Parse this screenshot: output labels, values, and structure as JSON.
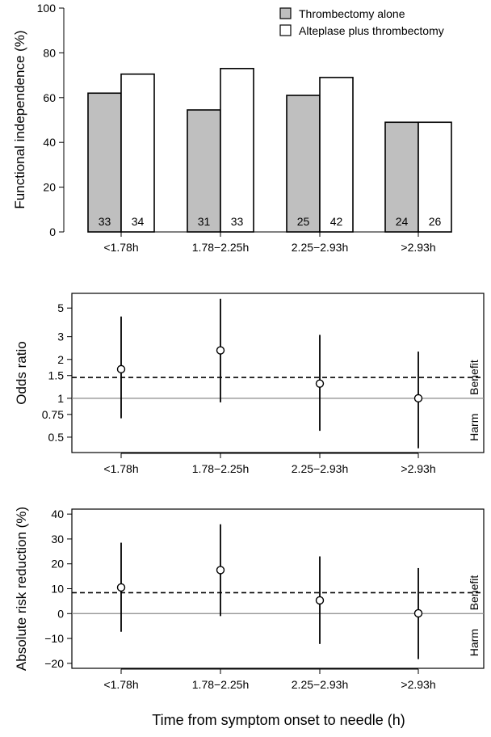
{
  "chart_data": [
    {
      "type": "bar",
      "ylabel": "Functional independence (%)",
      "ylim": [
        0,
        100
      ],
      "yticks": [
        0,
        20,
        40,
        60,
        80,
        100
      ],
      "categories": [
        "<1.78h",
        "1.78−2.25h",
        "2.25−2.93h",
        ">2.93h"
      ],
      "legend_position": "top-right",
      "series": [
        {
          "name": "Thrombectomy alone",
          "color": "#bfbfbf",
          "values": [
            62,
            54.5,
            61,
            49
          ],
          "counts": [
            "33",
            "31",
            "25",
            "24"
          ]
        },
        {
          "name": "Alteplase plus thrombectomy",
          "color": "#ffffff",
          "values": [
            70.5,
            73,
            69,
            49
          ],
          "counts": [
            "34",
            "33",
            "42",
            "26"
          ]
        }
      ]
    },
    {
      "type": "scatter",
      "ylabel": "Odds ratio",
      "yscale": "log",
      "ylim": [
        0.38,
        6.5
      ],
      "yticks": [
        0.5,
        0.75,
        1,
        1.5,
        2,
        3,
        5
      ],
      "ytick_labels": [
        "0.5",
        "0.75",
        "1",
        "1.5",
        "2",
        "3",
        "5"
      ],
      "categories": [
        "<1.78h",
        "1.78−2.25h",
        "2.25−2.93h",
        ">2.93h"
      ],
      "estimate": [
        1.68,
        2.35,
        1.3,
        1.0
      ],
      "ci_lower": [
        0.7,
        0.93,
        0.56,
        0.41
      ],
      "ci_upper": [
        4.3,
        5.9,
        3.1,
        2.3
      ],
      "reference_line": 1,
      "pooled_line": 1.45,
      "annotations": [
        "Benefit",
        "Harm"
      ]
    },
    {
      "type": "scatter",
      "ylabel": "Absolute risk reduction (%)",
      "ylim": [
        -22,
        42
      ],
      "yticks": [
        -20,
        -10,
        0,
        10,
        20,
        30,
        40
      ],
      "ytick_labels": [
        "−20",
        "−10",
        "0",
        "10",
        "20",
        "30",
        "40"
      ],
      "categories": [
        "<1.78h",
        "1.78−2.25h",
        "2.25−2.93h",
        ">2.93h"
      ],
      "estimate": [
        10.5,
        17.5,
        5.3,
        0.1
      ],
      "ci_lower": [
        -7.3,
        -1,
        -12.2,
        -18.3
      ],
      "ci_upper": [
        28.5,
        35.9,
        23,
        18.3
      ],
      "reference_line": 0,
      "pooled_line": 8.4,
      "annotations": [
        "Benefit",
        "Harm"
      ]
    }
  ],
  "xlabel": "Time from symptom onset to needle (h)"
}
